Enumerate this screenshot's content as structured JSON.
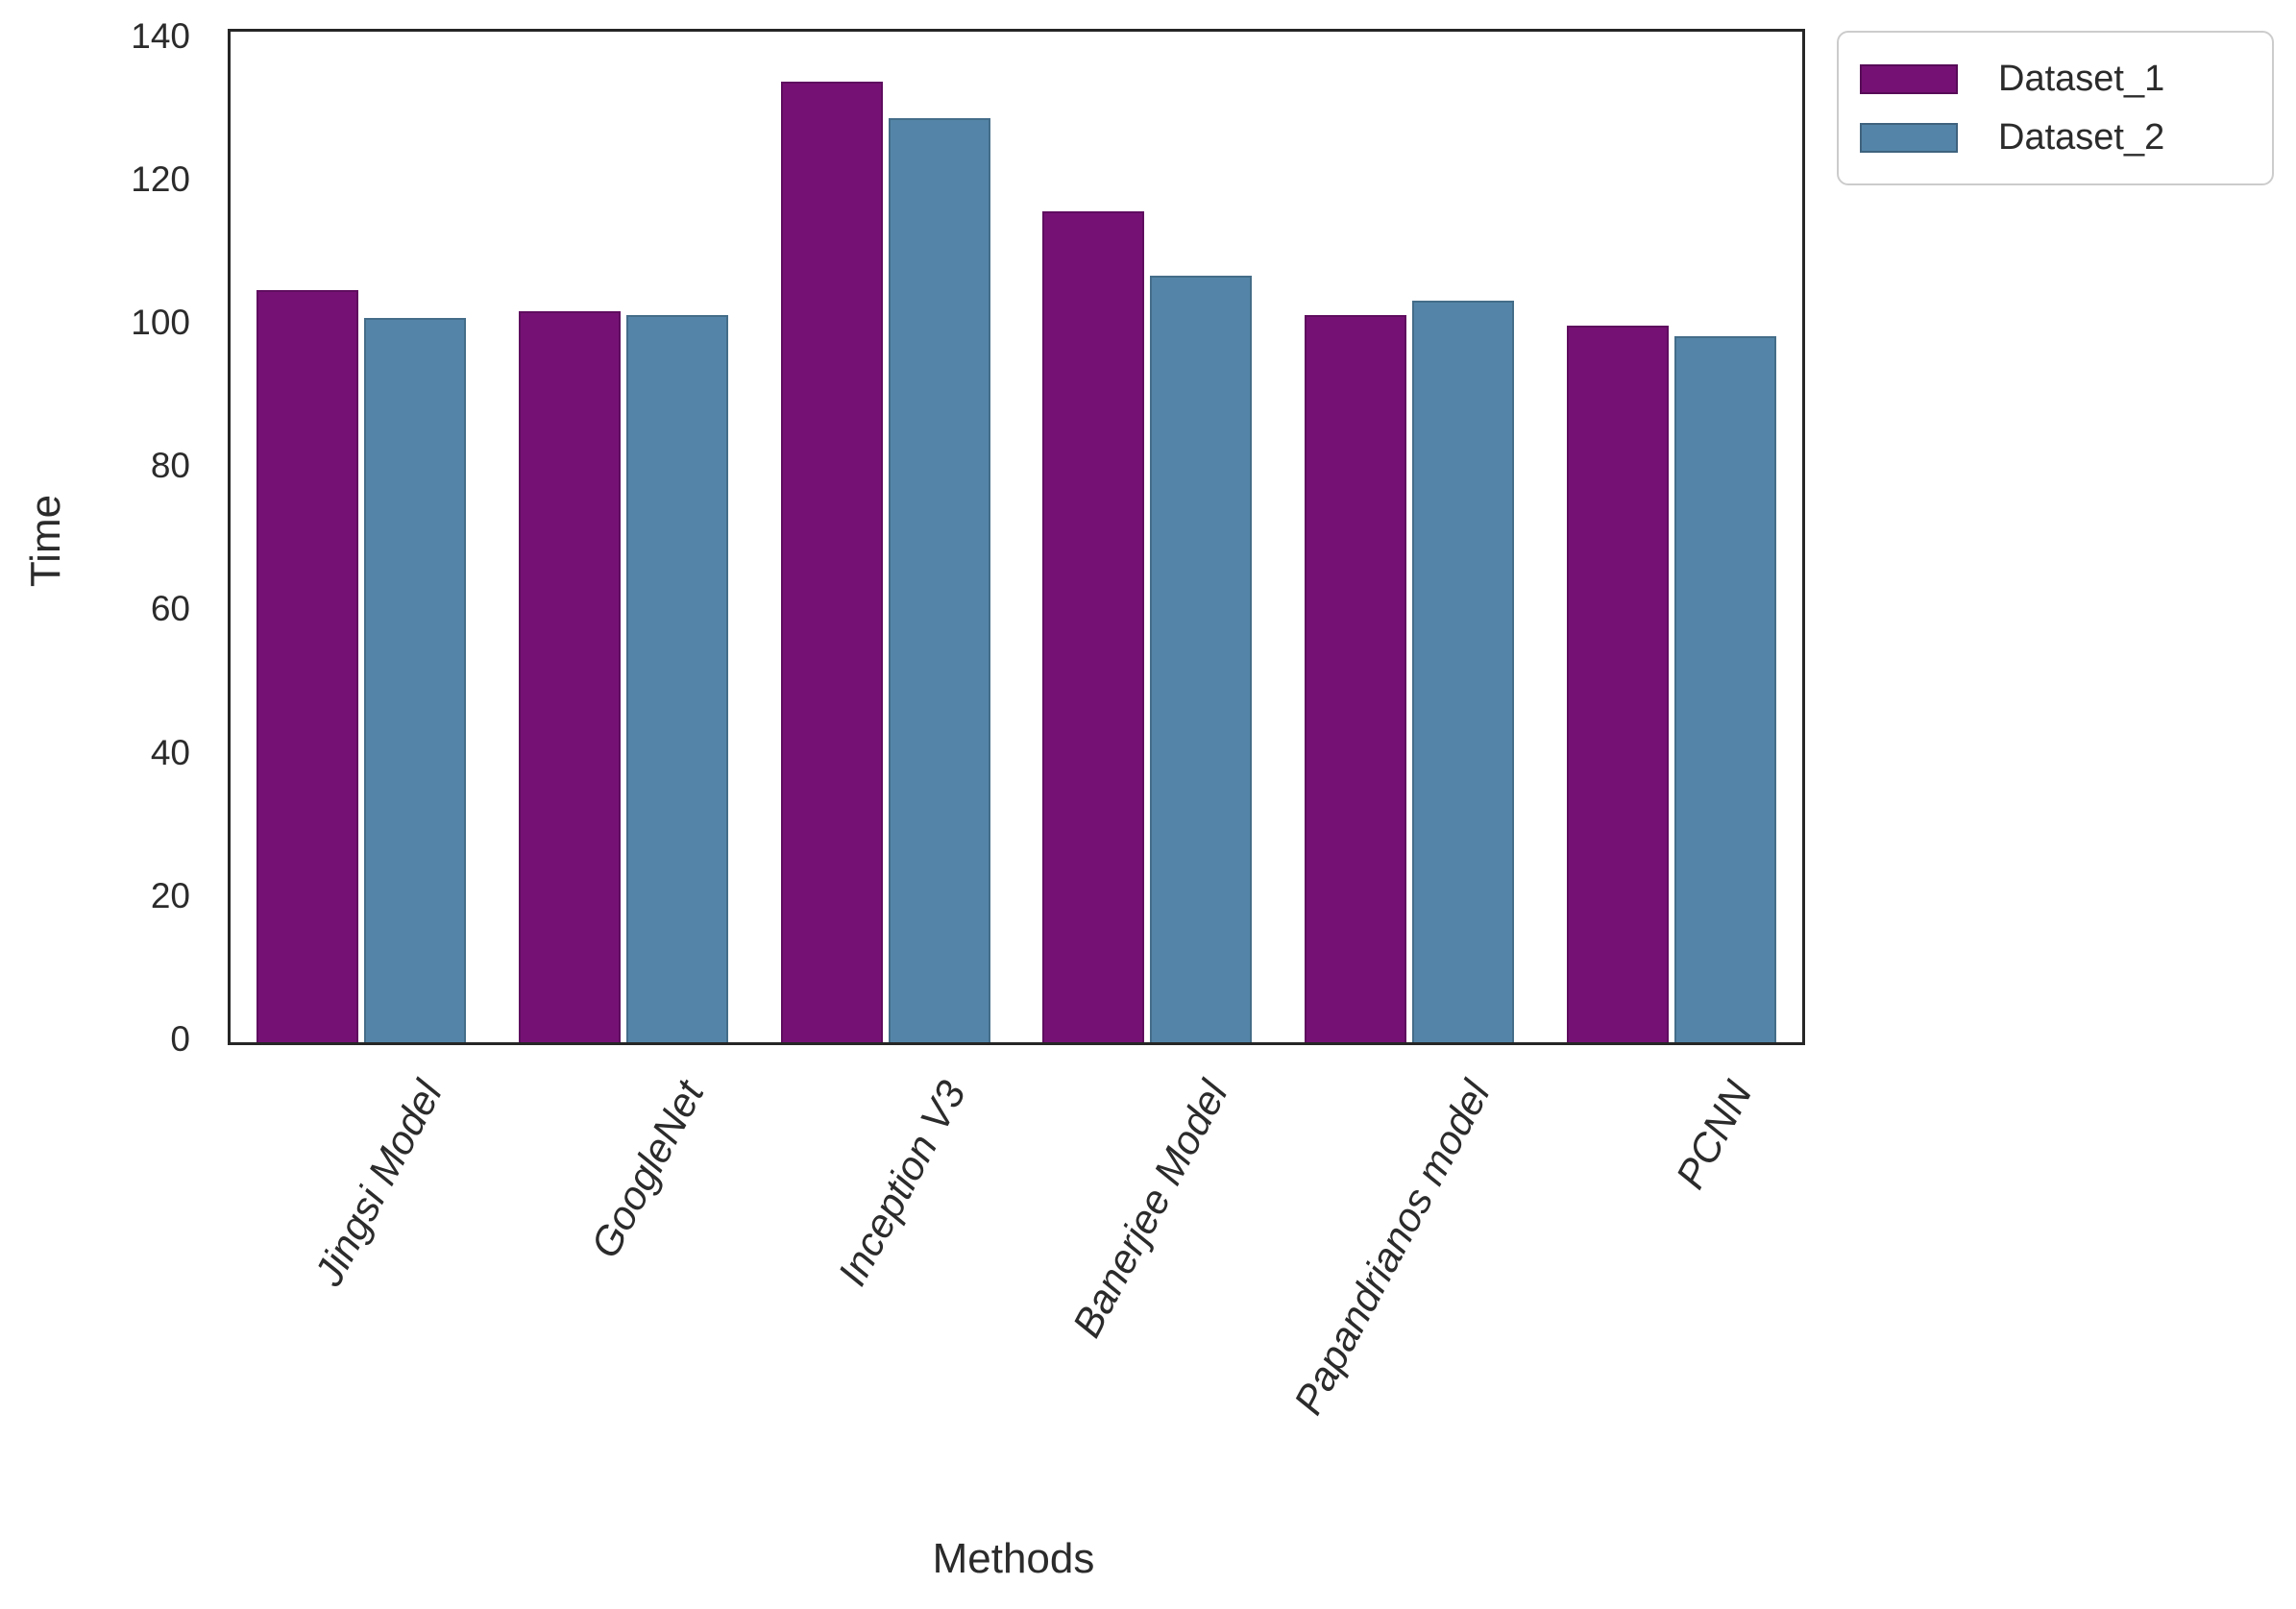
{
  "chart_data": {
    "type": "bar",
    "title": "",
    "xlabel": "Methods",
    "ylabel": "Time",
    "categories": [
      "Jingsi Model",
      "GoogleNet",
      "Inception V3",
      "Banerjee Model",
      "Papandrianos model",
      "PCNN"
    ],
    "series": [
      {
        "name": "Dataset_1",
        "color": "#751174",
        "values": [
          105,
          102,
          134,
          116,
          101.5,
          100
        ]
      },
      {
        "name": "Dataset_2",
        "color": "#5485A8",
        "values": [
          101,
          101.5,
          129,
          107,
          103.5,
          98.5
        ]
      }
    ],
    "ylim": [
      0,
      141
    ],
    "yticks": [
      0,
      20,
      40,
      60,
      80,
      100,
      120,
      140
    ],
    "grid": false,
    "legend_position": "outside-upper-right",
    "xtick_rotation_deg": 60,
    "xtick_style": "italic",
    "frame_color": "#262626",
    "text_color": "#2b2b2b"
  }
}
